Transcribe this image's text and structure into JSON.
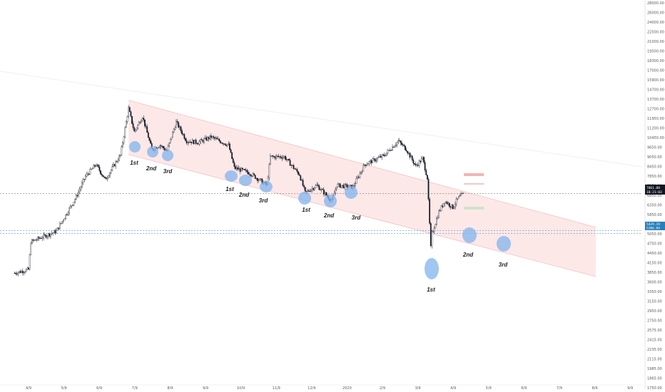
{
  "chart_data": {
    "type": "candlestick",
    "y_scale": "log",
    "ylim": [
      1750,
      28000
    ],
    "y_ticks": [
      "28000.00",
      "26000.00",
      "24000.00",
      "22500.00",
      "21000.00",
      "19500.00",
      "18300.00",
      "17000.00",
      "15900.00",
      "14700.00",
      "13700.00",
      "12700.00",
      "11950.00",
      "11200.00",
      "10450.00",
      "9650.00",
      "9050.00",
      "8450.00",
      "7850.00",
      "7350.00",
      "6850.00",
      "6350.00",
      "5850.00",
      "5450.00",
      "5050.00",
      "4750.00",
      "4450.00",
      "4150.00",
      "3850.00",
      "3600.00",
      "3350.00",
      "3150.00",
      "2950.00",
      "2750.00",
      "2575.00",
      "2415.00",
      "2235.00",
      "2115.00",
      "1985.00",
      "1865.00",
      "1750.00"
    ],
    "x_ticks": [
      "4/9",
      "5/9",
      "6/9",
      "7/9",
      "8/9",
      "9/9",
      "10/9",
      "11/9",
      "12/9",
      "2020",
      "2/9",
      "3/9",
      "4/9",
      "5/9",
      "6/9",
      "7/9",
      "8/9",
      "9/9"
    ],
    "price_tags": [
      {
        "label": "7061.00",
        "sub": "18:21:03",
        "color": "#131722"
      },
      {
        "label": "5429.19",
        "sub": "5306.84",
        "color": "#2a7fb8"
      }
    ],
    "channel": {
      "upper": [
        {
          "date": "2019-06-26",
          "price": 13800
        },
        {
          "date": "2020-08-01",
          "price": 5550
        }
      ],
      "lower": [
        {
          "date": "2019-06-26",
          "price": 9350
        },
        {
          "date": "2020-08-01",
          "price": 3900
        }
      ],
      "fill": "#fde4e4"
    },
    "touches": [
      {
        "label": "1st",
        "price": 9550
      },
      {
        "label": "2nd",
        "price": 9100
      },
      {
        "label": "3rd",
        "price": 8950
      },
      {
        "label": "1st",
        "price": 7850
      },
      {
        "label": "2nd",
        "price": 7600
      },
      {
        "label": "3rd",
        "price": 7100
      },
      {
        "label": "1st",
        "price": 6450
      },
      {
        "label": "2nd",
        "price": 6250
      },
      {
        "label": "3rd",
        "price": 6550
      },
      {
        "label": "1st",
        "price": 4000
      },
      {
        "label": "2nd",
        "price": 5250
      },
      {
        "label": "3rd",
        "price": 4850
      }
    ],
    "colors": {
      "up": "#ffffff",
      "down": "#131722",
      "touch": "#7fb4ee",
      "grid": "#ececec"
    }
  }
}
